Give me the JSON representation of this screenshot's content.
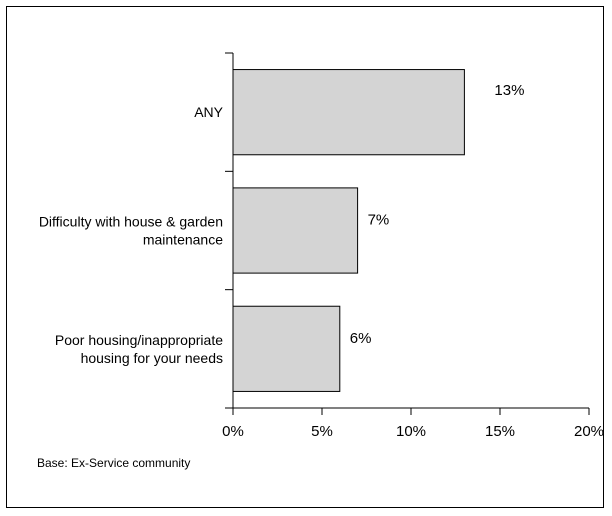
{
  "chart_data": {
    "type": "bar",
    "orientation": "horizontal",
    "categories": [
      [
        "ANY"
      ],
      [
        "Difficulty with house & garden",
        "maintenance"
      ],
      [
        "Poor housing/inappropriate",
        "housing for your needs"
      ]
    ],
    "values": [
      13,
      7,
      6
    ],
    "data_labels": [
      "13%",
      "7%",
      "6%"
    ],
    "xlim": [
      0,
      20
    ],
    "xticks": [
      0,
      5,
      10,
      15,
      20
    ],
    "xtick_labels": [
      "0%",
      "5%",
      "10%",
      "15%",
      "20%"
    ],
    "grid": false,
    "legend": "none",
    "bar_color": "#d4d4d4",
    "bar_edge_color": "#000000"
  },
  "footnote": "Base: Ex-Service community"
}
